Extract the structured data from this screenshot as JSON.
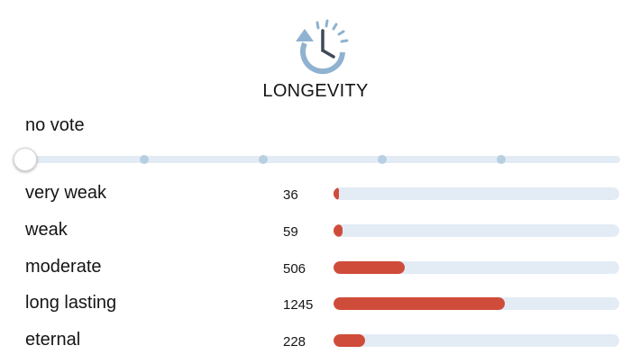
{
  "header": {
    "icon": "clock-rewind-icon",
    "title": "LONGEVITY"
  },
  "vote": {
    "label": "no vote",
    "options": [
      "very weak",
      "weak",
      "moderate",
      "long lasting",
      "eternal"
    ],
    "selected_index": 0
  },
  "colors": {
    "accent": "#d04c3a",
    "track": "#e3ecf5",
    "icon": "#8fb2d0"
  },
  "results": [
    {
      "label": "very weak",
      "count": "36",
      "fraction": 0.02
    },
    {
      "label": "weak",
      "count": "59",
      "fraction": 0.03
    },
    {
      "label": "moderate",
      "count": "506",
      "fraction": 0.25
    },
    {
      "label": "long lasting",
      "count": "1245",
      "fraction": 0.6
    },
    {
      "label": "eternal",
      "count": "228",
      "fraction": 0.11
    }
  ]
}
